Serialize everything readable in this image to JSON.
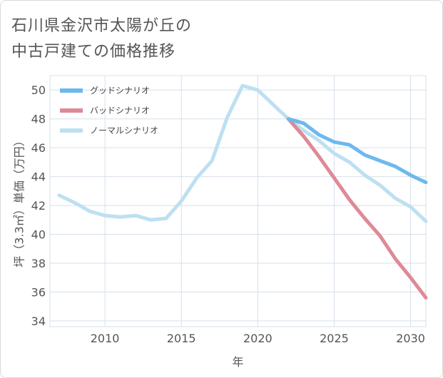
{
  "title_lines": [
    "石川県金沢市太陽が丘の",
    "中古戸建ての価格推移"
  ],
  "chart_data": {
    "type": "line",
    "title": "石川県金沢市太陽が丘の中古戸建ての価格推移",
    "xlabel": "年",
    "ylabel": "坪（3.3㎡）単価（万円）",
    "xlim": [
      2006.4,
      2031
    ],
    "ylim": [
      33.6,
      51.0
    ],
    "xticks": [
      2010,
      2015,
      2020,
      2025,
      2030
    ],
    "yticks": [
      34,
      36,
      38,
      40,
      42,
      44,
      46,
      48,
      50
    ],
    "grid": true,
    "legend_position": "top-left",
    "series": [
      {
        "name": "グッドシナリオ",
        "color": "#6cb9ee",
        "x": [
          2022,
          2023,
          2024,
          2025,
          2026,
          2027,
          2028,
          2029,
          2030,
          2031
        ],
        "y": [
          48.0,
          47.7,
          46.9,
          46.4,
          46.2,
          45.5,
          45.1,
          44.7,
          44.1,
          43.6
        ]
      },
      {
        "name": "バッドシナリオ",
        "color": "#de8a96",
        "x": [
          2022,
          2023,
          2024,
          2025,
          2026,
          2027,
          2028,
          2029,
          2030,
          2031
        ],
        "y": [
          48.0,
          46.8,
          45.4,
          43.9,
          42.4,
          41.1,
          39.9,
          38.3,
          37.0,
          35.6
        ]
      },
      {
        "name": "ノーマルシナリオ",
        "color": "#bde0f1",
        "x": [
          2007,
          2008,
          2009,
          2010,
          2011,
          2012,
          2013,
          2014,
          2015,
          2016,
          2017,
          2018,
          2019,
          2020,
          2021,
          2022,
          2023,
          2024,
          2025,
          2026,
          2027,
          2028,
          2029,
          2030,
          2031
        ],
        "y": [
          42.7,
          42.2,
          41.6,
          41.3,
          41.2,
          41.3,
          41.0,
          41.1,
          42.3,
          43.9,
          45.1,
          48.1,
          50.3,
          50.0,
          49.0,
          48.0,
          47.2,
          46.5,
          45.6,
          45.0,
          44.1,
          43.4,
          42.5,
          41.9,
          40.9
        ]
      }
    ]
  }
}
